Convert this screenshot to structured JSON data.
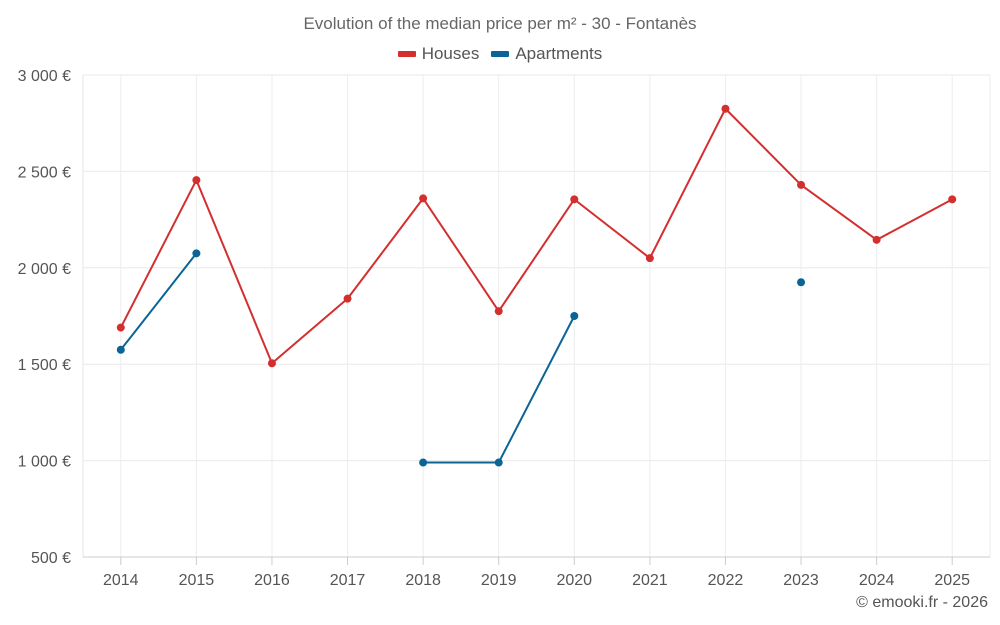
{
  "chart_data": {
    "type": "line",
    "title": "Evolution of the median price per m² - 30 - Fontanès",
    "categories": [
      "2014",
      "2015",
      "2016",
      "2017",
      "2018",
      "2019",
      "2020",
      "2021",
      "2022",
      "2023",
      "2024",
      "2025"
    ],
    "series": [
      {
        "name": "Houses",
        "color": "#d32f2f",
        "values": [
          1690,
          2455,
          1505,
          1840,
          2360,
          1775,
          2355,
          2050,
          2825,
          2430,
          2145,
          2355
        ]
      },
      {
        "name": "Apartments",
        "color": "#0a6496",
        "values": [
          1575,
          2075,
          null,
          null,
          990,
          990,
          1750,
          null,
          null,
          1925,
          null,
          null
        ]
      }
    ],
    "ylim": [
      500,
      3000
    ],
    "yticks": [
      500,
      1000,
      1500,
      2000,
      2500,
      3000
    ],
    "ytick_labels": [
      "500 €",
      "1 000 €",
      "1 500 €",
      "2 000 €",
      "2 500 €",
      "3 000 €"
    ],
    "xlabel": "",
    "ylabel": "",
    "grid": true,
    "legend_position": "top-center"
  },
  "credit": "© emooki.fr - 2026"
}
